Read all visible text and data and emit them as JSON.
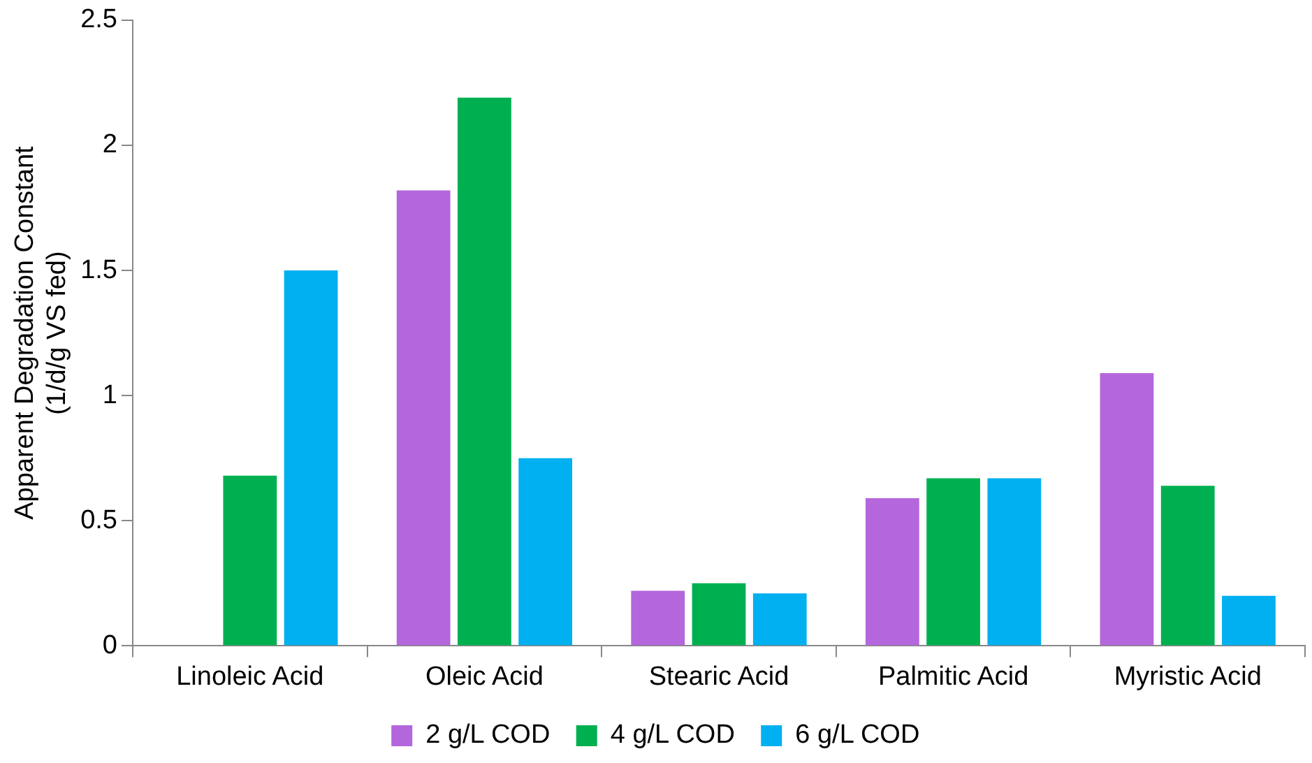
{
  "chart_data": {
    "type": "bar",
    "ylabel": "Apparent Degradation Constant\n(1/d/g VS fed)",
    "categories": [
      "Linoleic Acid",
      "Oleic Acid",
      "Stearic Acid",
      "Palmitic Acid",
      "Myristic Acid"
    ],
    "series": [
      {
        "name": "2 g/L COD",
        "color": "#b466dc",
        "values": [
          null,
          1.82,
          0.22,
          0.59,
          1.09
        ]
      },
      {
        "name": "4 g/L COD",
        "color": "#00b050",
        "values": [
          0.68,
          2.19,
          0.25,
          0.67,
          0.64
        ]
      },
      {
        "name": "6 g/L COD",
        "color": "#00b0f0",
        "values": [
          1.5,
          0.75,
          0.21,
          0.67,
          0.2
        ]
      }
    ],
    "ylim": [
      0,
      2.5
    ],
    "yticks": [
      0,
      0.5,
      1,
      1.5,
      2,
      2.5
    ],
    "grid": false,
    "legend": "bottom"
  }
}
